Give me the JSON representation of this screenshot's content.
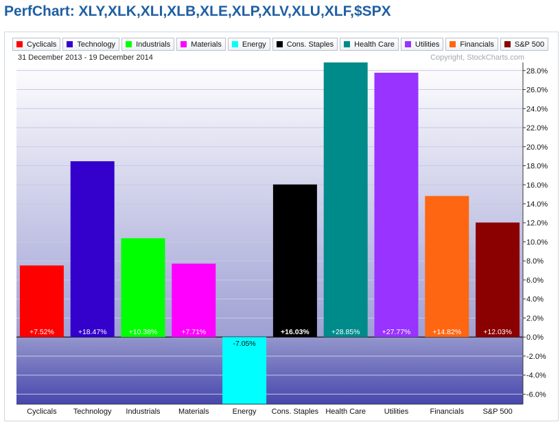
{
  "header": {
    "title": "PerfChart: XLY,XLK,XLI,XLB,XLE,XLP,XLV,XLU,XLF,$SPX"
  },
  "chart_info": {
    "date_range": "31 December 2013 - 19 December 2014",
    "copyright": "Copyright, StockCharts.com"
  },
  "chart_data": {
    "type": "bar",
    "categories": [
      "Cyclicals",
      "Technology",
      "Industrials",
      "Materials",
      "Energy",
      "Cons. Staples",
      "Health Care",
      "Utilities",
      "Financials",
      "S&P 500"
    ],
    "values": [
      7.52,
      18.47,
      10.38,
      7.71,
      -7.05,
      16.03,
      28.85,
      27.77,
      14.82,
      12.03
    ],
    "value_labels": [
      "+7.52%",
      "+18.47%",
      "+10.38%",
      "+7.71%",
      "-7.05%",
      "+16.03%",
      "+28.85%",
      "+27.77%",
      "+14.82%",
      "+12.03%"
    ],
    "colors": [
      "#ff0000",
      "#3300cc",
      "#00ff00",
      "#ff00ff",
      "#00ffff",
      "#000000",
      "#008b8b",
      "#9933ff",
      "#ff6611",
      "#8b0000"
    ],
    "ylim": [
      -7.05,
      28.85
    ],
    "yticks": [
      28,
      26,
      24,
      22,
      20,
      18,
      16,
      14,
      12,
      10,
      8,
      6,
      4,
      2,
      0,
      -2,
      -4,
      -6
    ],
    "ytick_labels": [
      "28.0%",
      "26.0%",
      "24.0%",
      "22.0%",
      "20.0%",
      "18.0%",
      "16.0%",
      "14.0%",
      "12.0%",
      "10.0%",
      "8.0%",
      "6.0%",
      "4.0%",
      "2.0%",
      "0.0%",
      "-2.0%",
      "-4.0%",
      "-6.0%"
    ],
    "grid": true,
    "legend_position": "top-left"
  }
}
